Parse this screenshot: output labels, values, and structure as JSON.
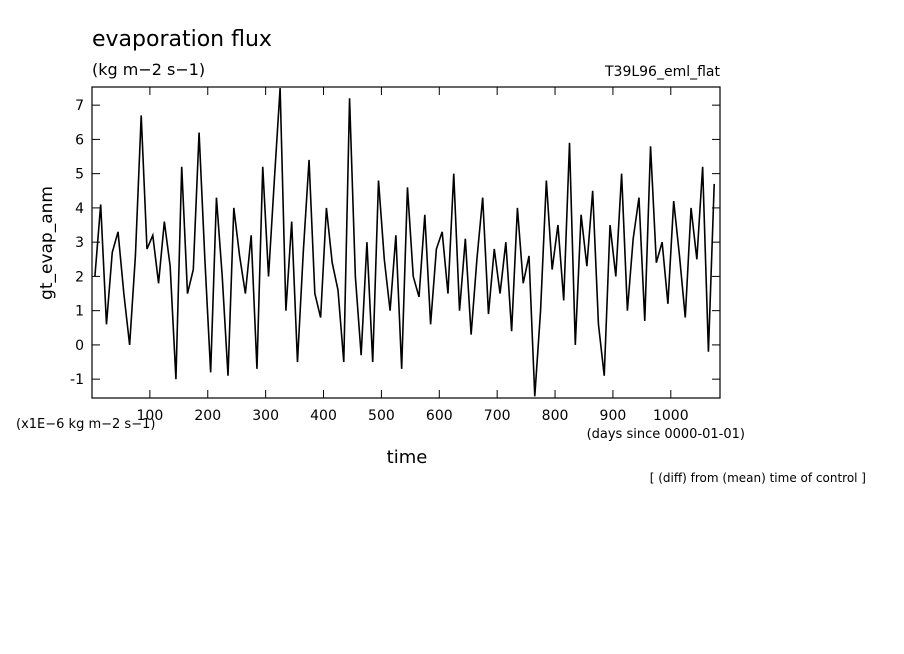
{
  "chart_data": {
    "type": "line",
    "title": "evaporation flux",
    "subtitle": "(kg m−2 s−1)",
    "run_label": "T39L96_eml_flat",
    "y_label": "gt_evap_anm",
    "y_unit_label": "(x1E−6 kg m−2 s−1)",
    "x_label": "time",
    "x_unit_label": "(days since 0000-01-01)",
    "note": "[ (diff) from (mean) time of control ]",
    "x": [
      5,
      15,
      25,
      35,
      45,
      55,
      65,
      75,
      85,
      95,
      105,
      115,
      125,
      135,
      145,
      155,
      165,
      175,
      185,
      195,
      205,
      215,
      225,
      235,
      245,
      255,
      265,
      275,
      285,
      295,
      305,
      315,
      325,
      335,
      345,
      355,
      365,
      375,
      385,
      395,
      405,
      415,
      425,
      435,
      445,
      455,
      465,
      475,
      485,
      495,
      505,
      515,
      525,
      535,
      545,
      555,
      565,
      575,
      585,
      595,
      605,
      615,
      625,
      635,
      645,
      655,
      665,
      675,
      685,
      695,
      705,
      715,
      725,
      735,
      745,
      755,
      765,
      775,
      785,
      795,
      805,
      815,
      825,
      835,
      845,
      855,
      865,
      875,
      885,
      895,
      905,
      915,
      925,
      935,
      945,
      955,
      965,
      975,
      985,
      995,
      1005,
      1015,
      1025,
      1035,
      1045,
      1055,
      1065,
      1075
    ],
    "series": [
      {
        "color": "#000000",
        "values": [
          2.0,
          4.1,
          0.6,
          2.7,
          3.3,
          1.5,
          0.0,
          2.6,
          6.7,
          2.8,
          3.2,
          1.8,
          3.6,
          2.3,
          -1.0,
          5.2,
          1.5,
          2.2,
          6.2,
          2.5,
          -0.8,
          4.3,
          2.0,
          -0.9,
          4.0,
          2.6,
          1.5,
          3.2,
          -0.7,
          5.2,
          2.0,
          4.8,
          7.5,
          1.0,
          3.6,
          -0.5,
          2.7,
          5.4,
          1.5,
          0.8,
          4.0,
          2.4,
          1.6,
          -0.5,
          7.2,
          2.0,
          -0.3,
          3.0,
          -0.5,
          4.8,
          2.5,
          1.0,
          3.2,
          -0.7,
          4.6,
          2.0,
          1.4,
          3.8,
          0.6,
          2.8,
          3.3,
          1.5,
          5.0,
          1.0,
          3.1,
          0.3,
          2.5,
          4.3,
          0.9,
          2.8,
          1.5,
          3.0,
          0.4,
          4.0,
          1.8,
          2.6,
          -1.5,
          1.0,
          4.8,
          2.2,
          3.5,
          1.3,
          5.9,
          0.0,
          3.8,
          2.3,
          4.5,
          0.6,
          -0.9,
          3.5,
          2.0,
          5.0,
          1.0,
          3.1,
          4.3,
          0.7,
          5.8,
          2.4,
          3.0,
          1.2,
          4.2,
          2.6,
          0.8,
          4.0,
          2.5,
          5.2,
          -0.2,
          4.7
        ]
      }
    ],
    "xlim": [
      0,
      1085
    ],
    "ylim": [
      -1.55,
      7.53
    ],
    "xticks": [
      100,
      200,
      300,
      400,
      500,
      600,
      700,
      800,
      900,
      1000
    ],
    "yticks": [
      -1,
      0,
      1,
      2,
      3,
      4,
      5,
      6,
      7
    ]
  }
}
